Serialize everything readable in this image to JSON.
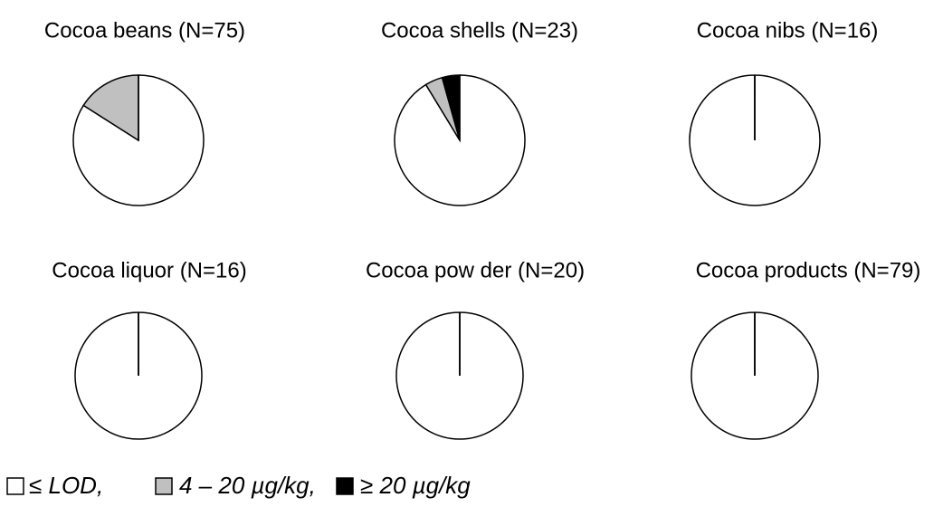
{
  "chart_data": [
    {
      "type": "pie",
      "title": "Cocoa beans (N=75)",
      "values": [
        63,
        12,
        0
      ]
    },
    {
      "type": "pie",
      "title": "Cocoa  shells (N=23)",
      "values": [
        21,
        1,
        1
      ]
    },
    {
      "type": "pie",
      "title": "Cocoa nibs (N=16)",
      "values": [
        16,
        0,
        0
      ]
    },
    {
      "type": "pie",
      "title": "Cocoa liquor (N=16)",
      "values": [
        16,
        0,
        0
      ]
    },
    {
      "type": "pie",
      "title": "Cocoa pow der (N=20)",
      "values": [
        20,
        0,
        0
      ]
    },
    {
      "type": "pie",
      "title": "Cocoa products (N=79)",
      "values": [
        79,
        0,
        0
      ]
    }
  ],
  "legend": {
    "labels": [
      "≤ LOD,",
      "4 – 20 µg/kg,",
      "≥ 20 µg/kg"
    ],
    "colors": [
      "#ffffff",
      "#c0c0c0",
      "#000000"
    ]
  }
}
